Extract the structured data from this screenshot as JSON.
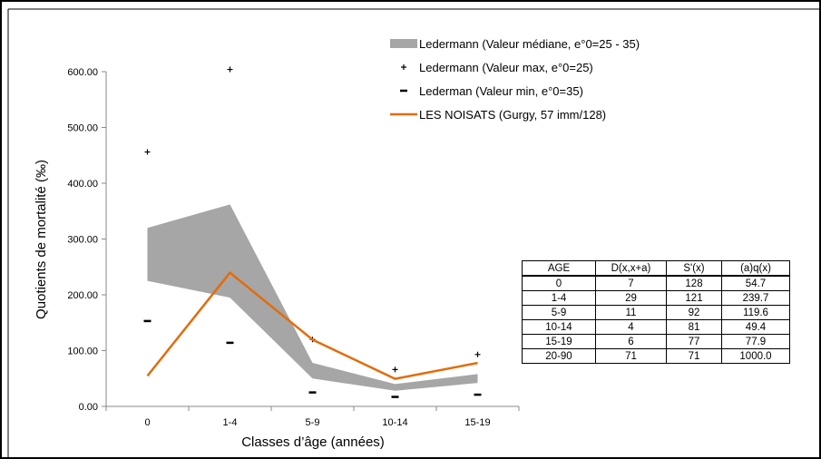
{
  "chart_data": {
    "type": "line",
    "ylabel": "Quotients de mortalité (‰)",
    "xlabel": "Classes d’âge (années)",
    "categories": [
      "0",
      "1-4",
      "5-9",
      "10-14",
      "15-19"
    ],
    "ylim": [
      0,
      600
    ],
    "yticks": [
      "0.00",
      "100.00",
      "200.00",
      "300.00",
      "400.00",
      "500.00",
      "600.00"
    ],
    "grid": false,
    "legend_position": "top-right",
    "series": [
      {
        "name": "Ledermann (Valeur médiane, e°0=25 - 35)",
        "kind": "band",
        "lower": [
          225,
          195,
          50,
          28,
          42
        ],
        "upper": [
          320,
          362,
          78,
          40,
          58
        ],
        "color": "#a6a6a6"
      },
      {
        "name": "Ledermann (Valeur max, e°0=25)",
        "kind": "plus",
        "values": [
          456,
          604,
          120,
          66,
          93
        ],
        "color": "#000000"
      },
      {
        "name": "Lederman (Valeur min, e°0=35)",
        "kind": "dash",
        "values": [
          153,
          114,
          25,
          17,
          21
        ],
        "color": "#000000"
      },
      {
        "name": "LES NOISATS (Gurgy, 57 imm/128)",
        "kind": "line",
        "values": [
          54.7,
          239.7,
          119.6,
          49.4,
          77.9
        ],
        "color": "#e36c0a"
      }
    ]
  },
  "table": {
    "headers": [
      "AGE",
      "D(x,x+a)",
      "S'(x)",
      "(a)q(x)"
    ],
    "rows": [
      [
        "0",
        "7",
        "128",
        "54.7"
      ],
      [
        "1-4",
        "29",
        "121",
        "239.7"
      ],
      [
        "5-9",
        "11",
        "92",
        "119.6"
      ],
      [
        "10-14",
        "4",
        "81",
        "49.4"
      ],
      [
        "15-19",
        "6",
        "77",
        "77.9"
      ],
      [
        "20-90",
        "71",
        "71",
        "1000.0"
      ]
    ]
  }
}
